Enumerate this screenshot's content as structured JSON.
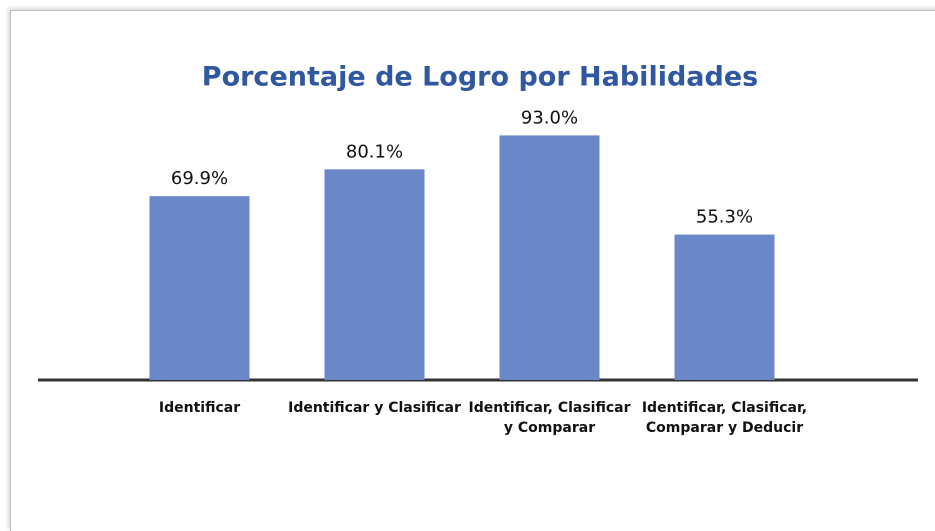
{
  "chart_data": {
    "type": "bar",
    "title": "Porcentaje de Logro por Habilidades",
    "categories": [
      "Identificar",
      "Identificar y Clasificar",
      "Identificar, Clasificar y Comparar",
      "Identificar, Clasificar, Comparar y Deducir"
    ],
    "values": [
      69.9,
      80.1,
      93.0,
      55.3
    ],
    "value_labels": [
      "69.9%",
      "80.1%",
      "93.0%",
      "55.3%"
    ],
    "color": "#6a87c8",
    "ylim": [
      0,
      100
    ]
  }
}
